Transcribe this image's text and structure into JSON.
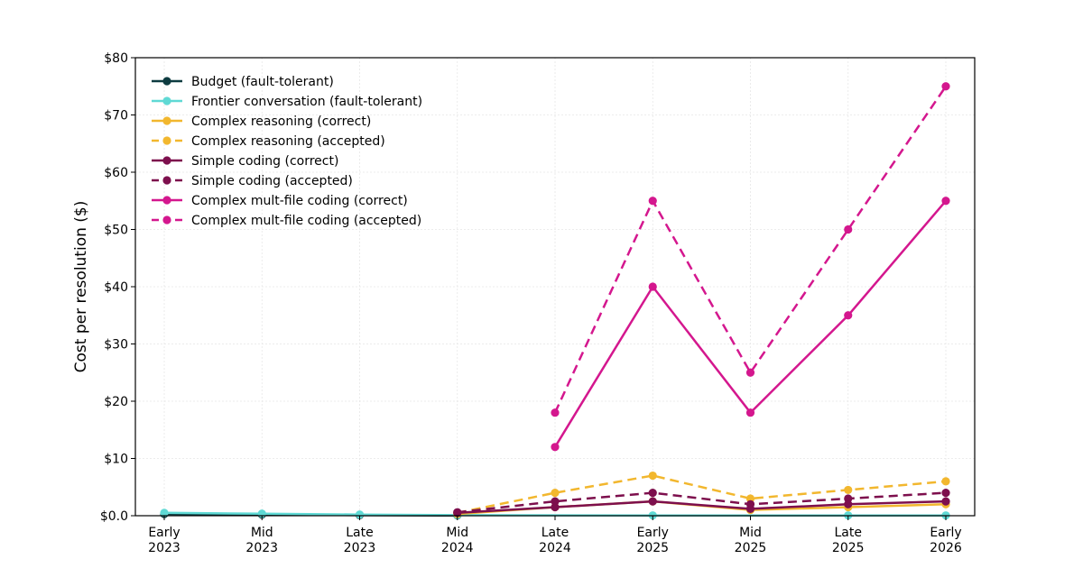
{
  "chart_data": {
    "type": "line",
    "title": "",
    "xlabel": "",
    "ylabel": "Cost per resolution ($)",
    "categories": [
      "Early\n2023",
      "Mid\n2023",
      "Late\n2023",
      "Mid\n2024",
      "Late\n2024",
      "Early\n2025",
      "Mid\n2025",
      "Late\n2025",
      "Early\n2026"
    ],
    "ylim": [
      0,
      80
    ],
    "yticks": [
      0,
      10,
      20,
      30,
      40,
      50,
      60,
      70,
      80
    ],
    "ytick_labels": [
      "$0.0",
      "$10",
      "$20",
      "$30",
      "$40",
      "$50",
      "$60",
      "$70",
      "$80"
    ],
    "grid": true,
    "legend_position": "top-left",
    "series": [
      {
        "name": "Budget (fault-tolerant)",
        "color": "#0d3b40",
        "dash": "solid",
        "values": [
          0.3,
          0.2,
          0.1,
          0.05,
          null,
          null,
          null,
          null,
          null
        ]
      },
      {
        "name": "Frontier conversation (fault-tolerant)",
        "color": "#5fd9d4",
        "dash": "solid",
        "values": [
          0.5,
          0.35,
          0.2,
          0.1,
          null,
          0.05,
          null,
          0.05,
          0.05
        ]
      },
      {
        "name": "Complex reasoning (correct)",
        "color": "#f2b72e",
        "dash": "solid",
        "values": [
          null,
          null,
          null,
          0.3,
          1.5,
          2.5,
          1.0,
          1.5,
          2.0
        ]
      },
      {
        "name": "Complex reasoning (accepted)",
        "color": "#f2b72e",
        "dash": "dashed",
        "values": [
          null,
          null,
          null,
          0.5,
          4.0,
          7.0,
          3.0,
          4.5,
          6.0
        ]
      },
      {
        "name": "Simple coding (correct)",
        "color": "#7d0f4d",
        "dash": "solid",
        "values": [
          null,
          null,
          null,
          0.5,
          1.5,
          2.5,
          1.2,
          2.0,
          2.5
        ]
      },
      {
        "name": "Simple coding (accepted)",
        "color": "#7d0f4d",
        "dash": "dashed",
        "values": [
          null,
          null,
          null,
          0.6,
          2.5,
          4.0,
          2.0,
          3.0,
          4.0
        ]
      },
      {
        "name": "Complex mult-file coding (correct)",
        "color": "#d4178e",
        "dash": "solid",
        "values": [
          null,
          null,
          null,
          null,
          12,
          40,
          18,
          35,
          55
        ]
      },
      {
        "name": "Complex mult-file coding (accepted)",
        "color": "#d4178e",
        "dash": "dashed",
        "values": [
          null,
          null,
          null,
          null,
          18,
          55,
          25,
          50,
          75
        ]
      }
    ]
  }
}
